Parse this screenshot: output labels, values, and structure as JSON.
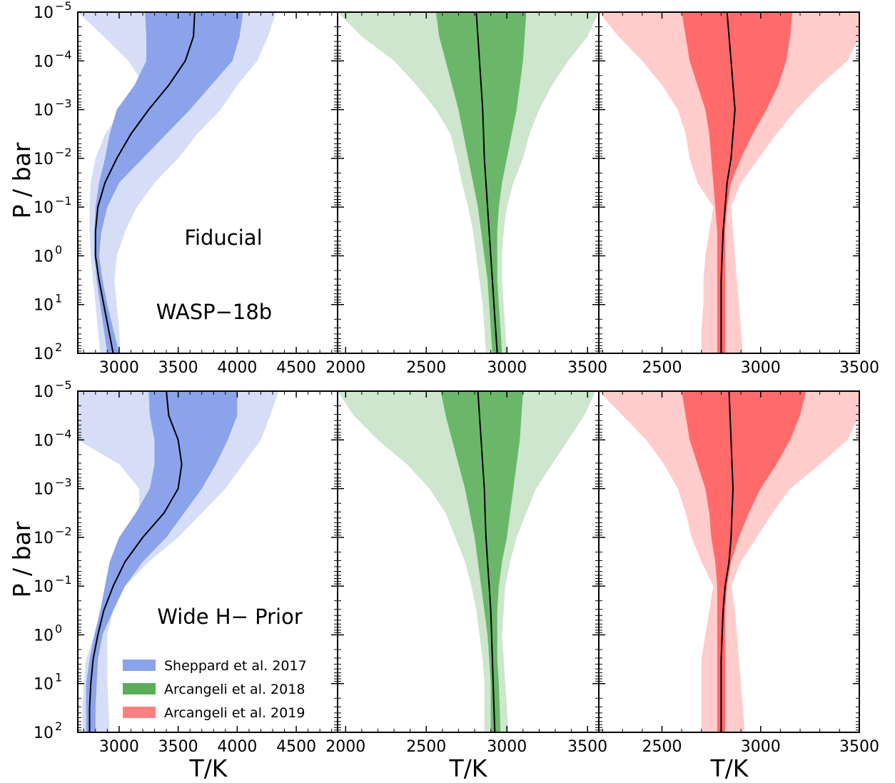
{
  "figure": {
    "ylabel": "P / bar",
    "xlabel": "T/K",
    "row_labels": [
      "Fiducial",
      "Wide H−  Prior"
    ],
    "planet_label": "WASP−18b"
  },
  "legend": {
    "placement": "lower-left of bottom-left panel",
    "entries": [
      {
        "label": "Sheppard et al. 2017",
        "color": "#8aa3ea"
      },
      {
        "label": "Arcangeli et al. 2018",
        "color": "#5cac5c"
      },
      {
        "label": "Arcangeli et al. 2019",
        "color": "#ff8080"
      }
    ]
  },
  "axes": {
    "y_ticks": [
      {
        "base": "10",
        "exp": "−5",
        "logp": -5
      },
      {
        "base": "10",
        "exp": "−4",
        "logp": -4
      },
      {
        "base": "10",
        "exp": "−3",
        "logp": -3
      },
      {
        "base": "10",
        "exp": "−2",
        "logp": -2
      },
      {
        "base": "10",
        "exp": "−1",
        "logp": -1
      },
      {
        "base": "10",
        "exp": "0",
        "logp": 0
      },
      {
        "base": "10",
        "exp": "1",
        "logp": 1
      },
      {
        "base": "10",
        "exp": "2",
        "logp": 2
      }
    ],
    "ylim_log10_bar": [
      -5,
      2
    ],
    "y_scale": "log, inverted (pressure increases downward)"
  },
  "chart_data": [
    {
      "type": "area",
      "panel": "Fiducial — Sheppard et al. 2017",
      "color_inner": "#8aa3ea",
      "color_outer": "#d6ddf6",
      "xlim": [
        2650,
        4850
      ],
      "xticks": [
        3000,
        3500,
        4000,
        4500
      ],
      "logP": [
        -5,
        -4.5,
        -4,
        -3.5,
        -3,
        -2.5,
        -2,
        -1.5,
        -1,
        -0.5,
        0,
        0.5,
        1,
        1.5,
        2
      ],
      "median": [
        3640,
        3630,
        3560,
        3420,
        3250,
        3100,
        2980,
        2880,
        2820,
        2800,
        2800,
        2830,
        2870,
        2910,
        2950
      ],
      "inner_lo": [
        3220,
        3230,
        3230,
        3130,
        2980,
        2920,
        2880,
        2830,
        2800,
        2790,
        2790,
        2810,
        2840,
        2870,
        2900
      ],
      "inner_hi": [
        4050,
        4020,
        3960,
        3780,
        3600,
        3400,
        3200,
        3000,
        2900,
        2850,
        2830,
        2860,
        2900,
        2950,
        3000
      ],
      "outer_lo": [
        2650,
        2870,
        3080,
        3210,
        3030,
        2880,
        2800,
        2760,
        2750,
        2750,
        2760,
        2780,
        2800,
        2820,
        2840
      ],
      "outer_hi": [
        4330,
        4260,
        4170,
        4000,
        3860,
        3660,
        3500,
        3300,
        3150,
        3050,
        2980,
        2960,
        2980,
        3000,
        3010
      ]
    },
    {
      "type": "area",
      "panel": "Fiducial — Arcangeli et al. 2018",
      "color_inner": "#6ab76a",
      "color_outer": "#cde6cd",
      "xlim": [
        1950,
        3570
      ],
      "xticks": [
        2000,
        2500,
        3000,
        3500
      ],
      "logP": [
        -5,
        -4.5,
        -4,
        -3.5,
        -3,
        -2.5,
        -2,
        -1.5,
        -1,
        -0.5,
        0,
        0.5,
        1,
        1.5,
        2
      ],
      "median": [
        2810,
        2820,
        2830,
        2840,
        2850,
        2855,
        2860,
        2870,
        2880,
        2890,
        2900,
        2910,
        2920,
        2930,
        2940
      ],
      "inner_lo": [
        2560,
        2580,
        2620,
        2660,
        2700,
        2730,
        2760,
        2790,
        2820,
        2840,
        2860,
        2880,
        2890,
        2900,
        2910
      ],
      "inner_hi": [
        3120,
        3110,
        3100,
        3080,
        3060,
        3030,
        3000,
        2970,
        2950,
        2940,
        2940,
        2940,
        2950,
        2960,
        2970
      ],
      "outer_lo": [
        1950,
        2100,
        2300,
        2440,
        2560,
        2650,
        2690,
        2720,
        2760,
        2790,
        2810,
        2830,
        2850,
        2860,
        2870
      ],
      "outer_hi": [
        3570,
        3500,
        3380,
        3280,
        3200,
        3140,
        3100,
        3040,
        3000,
        2980,
        2970,
        2970,
        2980,
        2990,
        3000
      ]
    },
    {
      "type": "area",
      "panel": "Fiducial — Arcangeli et al. 2019",
      "color_inner": "#ff6b6b",
      "color_outer": "#ffcccc",
      "xlim": [
        2180,
        3500
      ],
      "xticks": [
        2500,
        3000,
        3500
      ],
      "logP": [
        -5,
        -4.5,
        -4,
        -3.5,
        -3,
        -2.5,
        -2,
        -1.5,
        -1,
        -0.5,
        0,
        0.5,
        1,
        1.5,
        2
      ],
      "median": [
        2830,
        2840,
        2850,
        2860,
        2870,
        2860,
        2850,
        2830,
        2820,
        2810,
        2805,
        2800,
        2800,
        2800,
        2800
      ],
      "inner_lo": [
        2600,
        2620,
        2640,
        2680,
        2720,
        2740,
        2750,
        2760,
        2770,
        2780,
        2780,
        2780,
        2780,
        2780,
        2780
      ],
      "inner_hi": [
        3160,
        3150,
        3130,
        3090,
        3030,
        2960,
        2900,
        2850,
        2830,
        2820,
        2820,
        2820,
        2820,
        2820,
        2820
      ],
      "outer_lo": [
        2180,
        2280,
        2400,
        2500,
        2580,
        2620,
        2640,
        2680,
        2760,
        2740,
        2720,
        2710,
        2710,
        2700,
        2700
      ],
      "outer_hi": [
        3500,
        3500,
        3440,
        3300,
        3180,
        3080,
        2990,
        2900,
        2850,
        2860,
        2870,
        2880,
        2890,
        2900,
        2910
      ]
    },
    {
      "type": "area",
      "panel": "Wide H− Prior — Sheppard et al. 2017",
      "color_inner": "#8aa3ea",
      "color_outer": "#d6ddf6",
      "xlim": [
        2650,
        4850
      ],
      "xticks": [
        3000,
        3500,
        4000,
        4500
      ],
      "logP": [
        -5,
        -4.5,
        -4,
        -3.5,
        -3,
        -2.5,
        -2,
        -1.5,
        -1,
        -0.5,
        0,
        0.5,
        1,
        1.5,
        2
      ],
      "median": [
        3400,
        3420,
        3500,
        3530,
        3500,
        3380,
        3200,
        3050,
        2950,
        2870,
        2820,
        2780,
        2760,
        2750,
        2750
      ],
      "inner_lo": [
        3250,
        3260,
        3300,
        3300,
        3260,
        3140,
        3000,
        2920,
        2880,
        2840,
        2790,
        2750,
        2720,
        2720,
        2720
      ],
      "inner_hi": [
        4000,
        4000,
        3920,
        3820,
        3700,
        3550,
        3400,
        3200,
        3050,
        2950,
        2860,
        2820,
        2810,
        2800,
        2800
      ],
      "outer_lo": [
        2650,
        2650,
        2650,
        3000,
        3170,
        3170,
        3050,
        2950,
        2890,
        2860,
        2790,
        2720,
        2700,
        2690,
        2690
      ],
      "outer_hi": [
        4350,
        4280,
        4200,
        4050,
        3900,
        3700,
        3500,
        3250,
        3050,
        2950,
        2900,
        2900,
        2900,
        2910,
        2920
      ]
    },
    {
      "type": "area",
      "panel": "Wide H− Prior — Arcangeli et al. 2018",
      "color_inner": "#6ab76a",
      "color_outer": "#cde6cd",
      "xlim": [
        1950,
        3570
      ],
      "xticks": [
        2000,
        2500,
        3000,
        3500
      ],
      "logP": [
        -5,
        -4.5,
        -4,
        -3.5,
        -3,
        -2.5,
        -2,
        -1.5,
        -1,
        -0.5,
        0,
        0.5,
        1,
        1.5,
        2
      ],
      "median": [
        2820,
        2830,
        2840,
        2850,
        2860,
        2865,
        2870,
        2880,
        2890,
        2900,
        2905,
        2910,
        2915,
        2920,
        2925
      ],
      "inner_lo": [
        2590,
        2620,
        2660,
        2700,
        2740,
        2770,
        2800,
        2820,
        2840,
        2860,
        2880,
        2890,
        2900,
        2900,
        2900
      ],
      "inner_hi": [
        3100,
        3090,
        3080,
        3060,
        3040,
        3020,
        3000,
        2970,
        2950,
        2940,
        2940,
        2940,
        2950,
        2955,
        2960
      ],
      "outer_lo": [
        1950,
        2050,
        2200,
        2380,
        2520,
        2620,
        2680,
        2740,
        2780,
        2810,
        2830,
        2850,
        2860,
        2860,
        2860
      ],
      "outer_hi": [
        3550,
        3480,
        3380,
        3280,
        3180,
        3120,
        3060,
        3020,
        2990,
        2980,
        2970,
        2980,
        2990,
        3000,
        3010
      ]
    },
    {
      "type": "area",
      "panel": "Wide H− Prior — Arcangeli et al. 2019",
      "color_inner": "#ff6b6b",
      "color_outer": "#ffcccc",
      "xlim": [
        2180,
        3500
      ],
      "xticks": [
        2500,
        3000,
        3500
      ],
      "logP": [
        -5,
        -4.5,
        -4,
        -3.5,
        -3,
        -2.5,
        -2,
        -1.5,
        -1,
        -0.5,
        0,
        0.5,
        1,
        1.5,
        2
      ],
      "median": [
        2840,
        2845,
        2850,
        2855,
        2860,
        2855,
        2850,
        2840,
        2820,
        2810,
        2805,
        2800,
        2800,
        2800,
        2800
      ],
      "inner_lo": [
        2600,
        2620,
        2640,
        2680,
        2720,
        2740,
        2750,
        2770,
        2780,
        2780,
        2780,
        2780,
        2780,
        2780,
        2780
      ],
      "inner_hi": [
        3230,
        3200,
        3150,
        3080,
        3000,
        2940,
        2890,
        2850,
        2830,
        2820,
        2820,
        2820,
        2820,
        2820,
        2820
      ],
      "outer_lo": [
        2180,
        2300,
        2420,
        2510,
        2580,
        2620,
        2650,
        2700,
        2760,
        2740,
        2720,
        2700,
        2700,
        2700,
        2700
      ],
      "outer_hi": [
        3500,
        3500,
        3440,
        3300,
        3150,
        3060,
        2980,
        2900,
        2850,
        2870,
        2880,
        2890,
        2900,
        2910,
        2920
      ]
    }
  ]
}
